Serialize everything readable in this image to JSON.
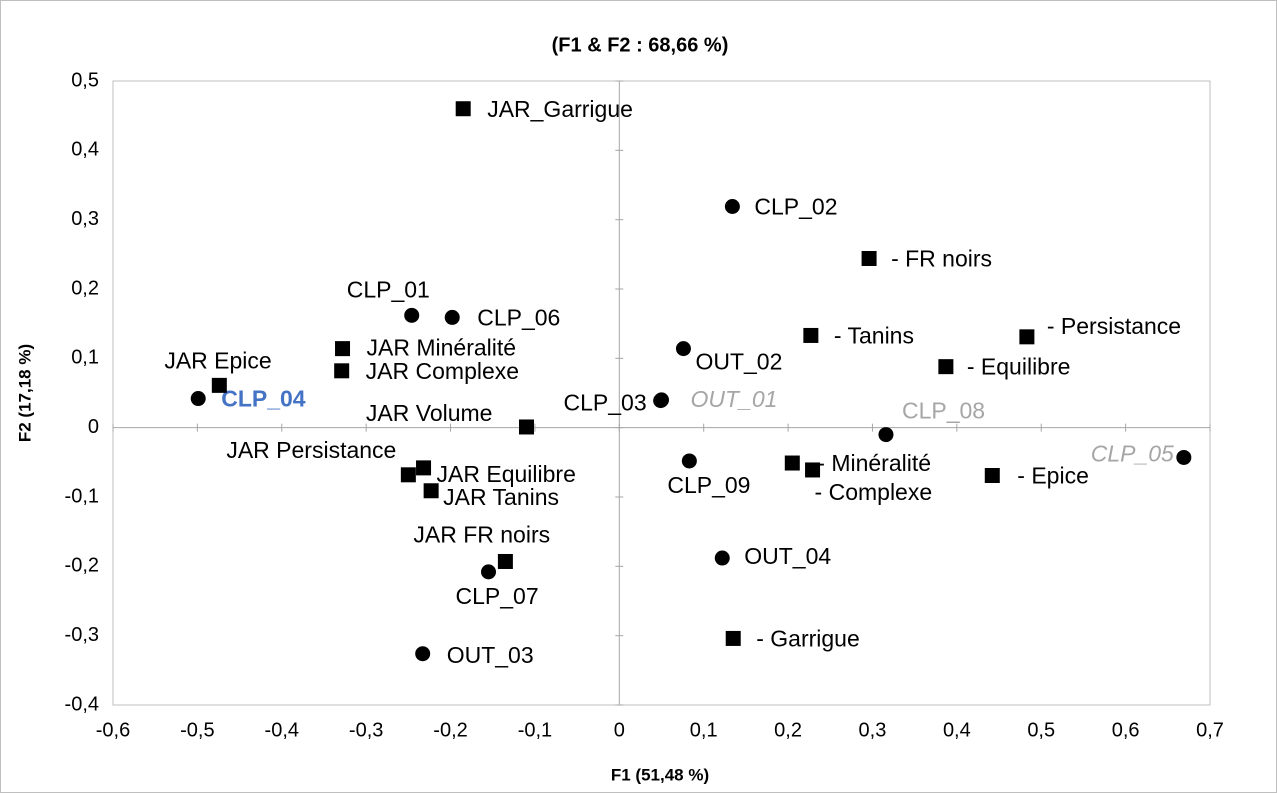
{
  "chart_data": {
    "type": "scatter",
    "title": "(F1 & F2 : 68,66 %)",
    "x_label": "F1 (51,48 %)",
    "y_label": "F2 (17,18 %)",
    "xlim": [
      -0.6,
      0.7
    ],
    "ylim": [
      -0.4,
      0.5
    ],
    "xticks": [
      {
        "value": -0.6,
        "label": "-0,6"
      },
      {
        "value": -0.5,
        "label": "-0,5"
      },
      {
        "value": -0.4,
        "label": "-0,4"
      },
      {
        "value": -0.3,
        "label": "-0,3"
      },
      {
        "value": -0.2,
        "label": "-0,2"
      },
      {
        "value": -0.1,
        "label": "-0,1"
      },
      0,
      {
        "value": 0.1,
        "label": "0,1"
      },
      {
        "value": 0.2,
        "label": "0,2"
      },
      {
        "value": 0.3,
        "label": "0,3"
      },
      {
        "value": 0.4,
        "label": "0,4"
      },
      {
        "value": 0.5,
        "label": "0,5"
      },
      {
        "value": 0.6,
        "label": "0,6"
      },
      {
        "value": 0.7,
        "label": "0,7"
      }
    ],
    "yticks": [
      {
        "value": -0.4,
        "label": "-0,4"
      },
      {
        "value": -0.3,
        "label": "-0,3"
      },
      {
        "value": -0.2,
        "label": "-0,2"
      },
      {
        "value": -0.1,
        "label": "-0,1"
      },
      0,
      {
        "value": 0.1,
        "label": "0,1"
      },
      {
        "value": 0.2,
        "label": "0,2"
      },
      {
        "value": 0.3,
        "label": "0,3"
      },
      {
        "value": 0.4,
        "label": "0,4"
      },
      {
        "value": 0.5,
        "label": "0,5"
      }
    ],
    "series": [
      {
        "marker": "circle",
        "color": "#000000",
        "labels": [
          "CLP_02",
          "CLP_01",
          "CLP_06",
          "OUT_02",
          "CLP_04",
          "CLP_03",
          "OUT_01",
          "CLP_08",
          "CLP_05",
          "CLP_09",
          "OUT_04",
          "CLP_07",
          "OUT_03"
        ],
        "label_colors": [
          "#000000",
          "#000000",
          "#000000",
          "#000000",
          "#4472c4",
          "#000000",
          "#a6a6a6",
          "#a6a6a6",
          "#a6a6a6",
          "#000000",
          "#000000",
          "#000000",
          "#000000"
        ],
        "label_styles": [
          "normal",
          "normal",
          "normal",
          "normal",
          "bold",
          "normal",
          "italic",
          "normal",
          "italic",
          "normal",
          "normal",
          "normal",
          "normal"
        ],
        "x": [
          0.134,
          -0.246,
          -0.198,
          0.076,
          -0.499,
          0.049,
          0.05,
          0.316,
          0.669,
          0.083,
          0.122,
          -0.155,
          -0.233
        ],
        "values": [
          0.319,
          0.162,
          0.159,
          0.114,
          0.042,
          0.039,
          0.04,
          -0.01,
          -0.043,
          -0.048,
          -0.188,
          -0.208,
          -0.326
        ]
      },
      {
        "marker": "square",
        "color": "#000000",
        "labels": [
          "JAR_Garrigue",
          "- FR noirs",
          "- Tanins",
          "- Persistance",
          "- Equilibre",
          "JAR Minéralité",
          "JAR Complexe",
          "JAR Epice",
          "JAR Volume",
          "JAR Persistance",
          "JAR Equilibre",
          "JAR Tanins",
          "- Minéralité",
          "- Complexe",
          "- Epice",
          "JAR FR noirs",
          "- Garrigue"
        ],
        "x": [
          -0.185,
          0.296,
          0.227,
          0.483,
          0.387,
          -0.328,
          -0.329,
          -0.474,
          -0.11,
          -0.25,
          -0.232,
          -0.223,
          0.205,
          0.229,
          0.442,
          -0.135,
          0.135
        ],
        "values": [
          0.46,
          0.244,
          0.133,
          0.131,
          0.088,
          0.114,
          0.082,
          0.061,
          0.001,
          -0.068,
          -0.058,
          -0.091,
          -0.051,
          -0.061,
          -0.069,
          -0.193,
          -0.304
        ]
      }
    ]
  }
}
